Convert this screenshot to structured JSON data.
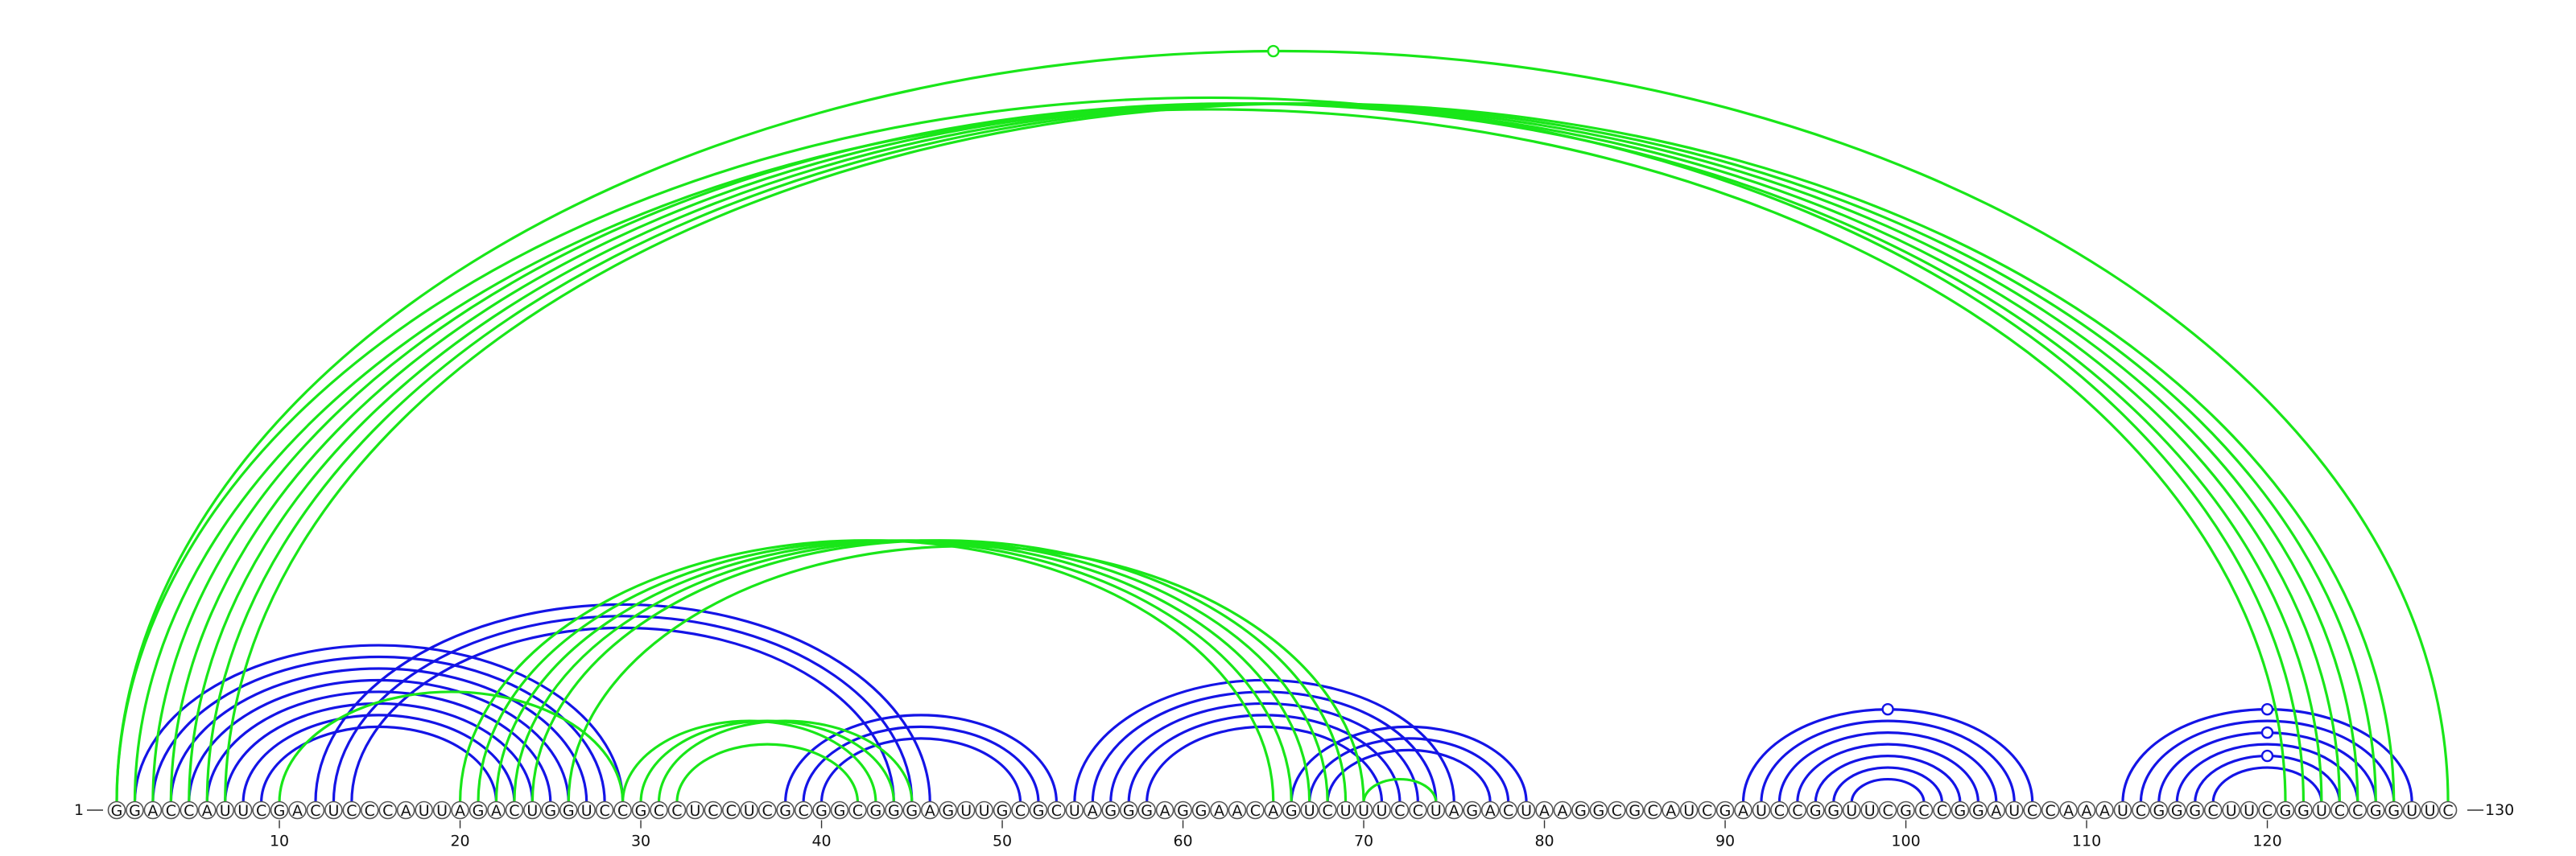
{
  "chart_data": {
    "type": "arc-diagram",
    "sequence": "GGACCAUUCGACUCCCAUUAGACUGGUCCGCCUCCUCGCGGCGGGAGUUGCGCUAGGGAGGAACAGUCUUUCCUAGACUAAGGCGCAUCGAUCCGGUUCGCCGGAUCCAAAUCGGGCUUCGGUCCGGUUC",
    "start_label": "1",
    "end_label": "130",
    "axis_ticks": [
      10,
      20,
      30,
      40,
      50,
      60,
      70,
      80,
      90,
      100,
      110,
      120
    ],
    "colors": {
      "blue": "#1414e6",
      "green": "#19e619"
    },
    "series": [
      {
        "color": "blue",
        "pairs": [
          [
            2,
            29
          ],
          [
            3,
            28
          ],
          [
            4,
            27
          ],
          [
            5,
            26
          ],
          [
            6,
            25
          ],
          [
            7,
            24
          ],
          [
            8,
            23
          ],
          [
            9,
            22
          ],
          [
            12,
            46
          ],
          [
            13,
            45
          ],
          [
            14,
            44
          ],
          [
            38,
            53
          ],
          [
            39,
            52
          ],
          [
            40,
            51
          ],
          [
            54,
            75
          ],
          [
            55,
            74
          ],
          [
            56,
            73
          ],
          [
            57,
            72
          ],
          [
            58,
            71
          ],
          [
            66,
            79
          ],
          [
            67,
            78
          ],
          [
            68,
            77
          ],
          [
            91,
            107
          ],
          [
            92,
            106
          ],
          [
            93,
            105
          ],
          [
            94,
            104
          ],
          [
            95,
            103
          ],
          [
            96,
            102
          ],
          [
            97,
            101
          ],
          [
            112,
            128
          ],
          [
            113,
            127
          ],
          [
            114,
            126
          ],
          [
            115,
            125
          ],
          [
            116,
            124
          ],
          [
            117,
            123
          ]
        ],
        "markers": [
          99,
          120,
          120,
          120
        ]
      },
      {
        "color": "green",
        "pairs": [
          [
            1,
            122
          ],
          [
            2,
            121
          ],
          [
            3,
            123
          ],
          [
            4,
            124
          ],
          [
            5,
            125
          ],
          [
            6,
            126
          ],
          [
            7,
            127
          ],
          [
            1,
            130
          ],
          [
            20,
            65
          ],
          [
            21,
            66
          ],
          [
            22,
            67
          ],
          [
            23,
            68
          ],
          [
            24,
            69
          ],
          [
            26,
            70
          ],
          [
            29,
            43
          ],
          [
            30,
            44
          ],
          [
            31,
            45
          ],
          [
            32,
            42
          ],
          [
            10,
            29
          ],
          [
            70,
            74
          ]
        ],
        "markers": [
          65
        ]
      }
    ]
  }
}
